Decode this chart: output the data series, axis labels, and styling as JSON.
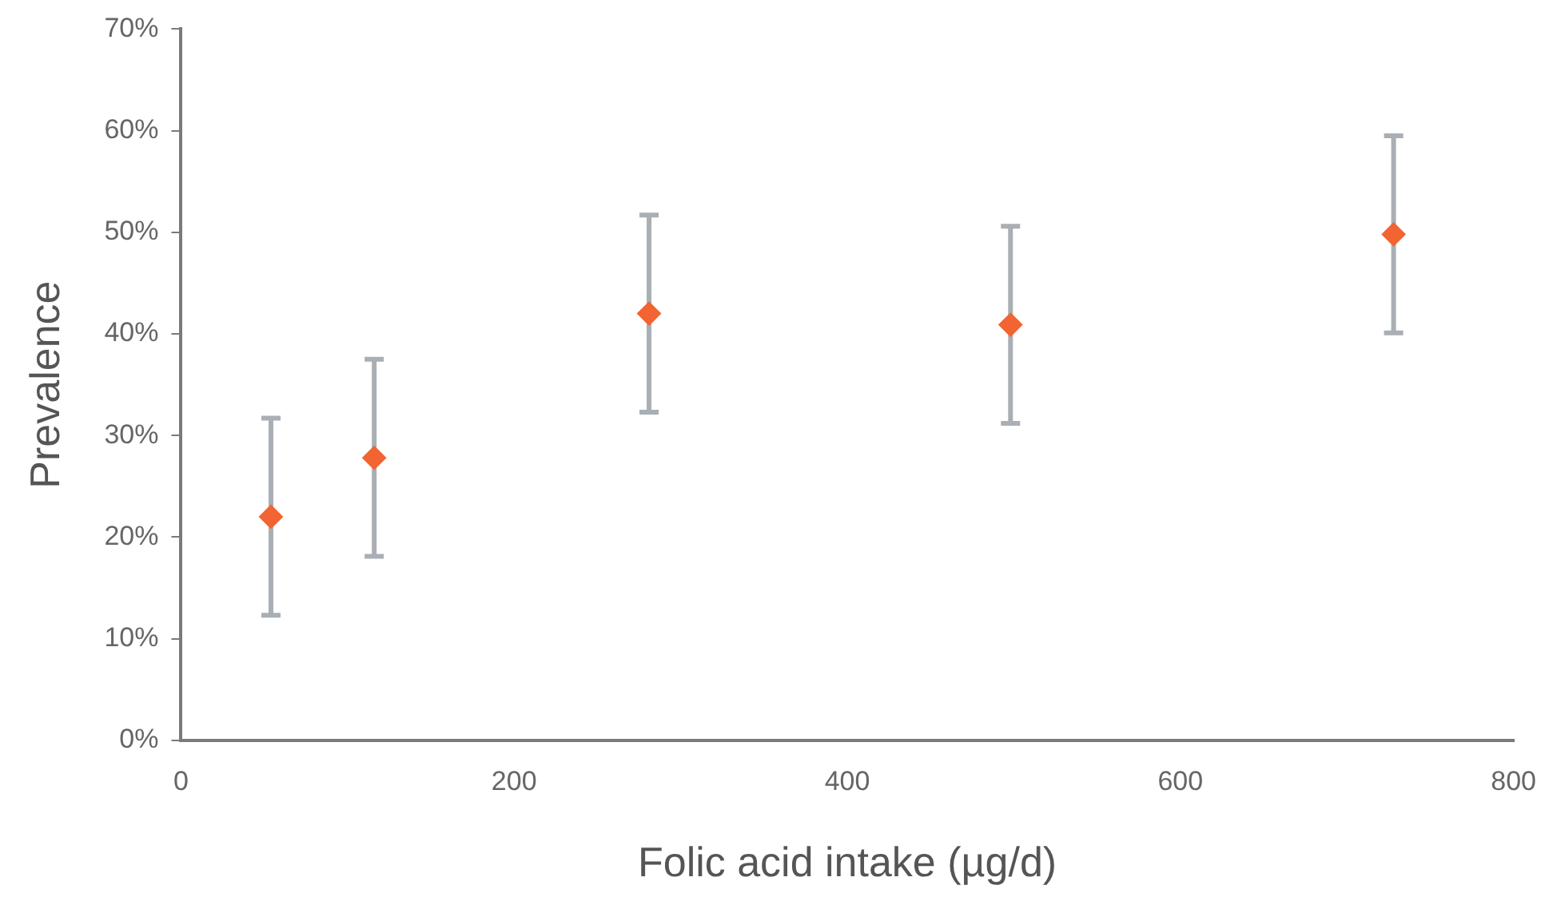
{
  "chart_data": {
    "type": "scatter",
    "xlabel": "Folic acid intake (µg/d)",
    "ylabel": "Prevalence",
    "x": [
      54,
      116,
      281,
      498,
      728
    ],
    "series": [
      {
        "color": "#f26432",
        "values": [
          22,
          27.8,
          42,
          40.9,
          49.8
        ],
        "errors": [
          9.7,
          9.7,
          9.7,
          9.7,
          9.7
        ]
      }
    ],
    "xlim": [
      0,
      800
    ],
    "xticks": [
      0,
      200,
      400,
      600,
      800
    ],
    "ylim": [
      0,
      70
    ],
    "yticks": [
      {
        "value": 0,
        "label": "0%"
      },
      {
        "value": 10,
        "label": "10%"
      },
      {
        "value": 20,
        "label": "20%"
      },
      {
        "value": 30,
        "label": "30%"
      },
      {
        "value": 40,
        "label": "40%"
      },
      {
        "value": 50,
        "label": "50%"
      },
      {
        "value": 60,
        "label": "60%"
      },
      {
        "value": 70,
        "label": "70%"
      }
    ],
    "marker": "diamond",
    "grid": false,
    "legend": false
  }
}
